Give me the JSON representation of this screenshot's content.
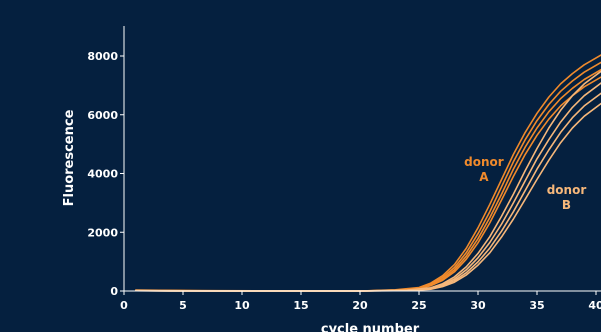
{
  "chart_data": {
    "type": "line",
    "xlabel": "cycle number",
    "ylabel": "Fluorescence",
    "xlim": [
      0,
      40
    ],
    "ylim": [
      0,
      8500
    ],
    "xticks": [
      0,
      5,
      10,
      15,
      20,
      25,
      30,
      35,
      40
    ],
    "yticks": [
      0,
      2000,
      4000,
      6000,
      8000
    ],
    "grid": false,
    "annotations": [
      {
        "line1": "donor",
        "line2": "A",
        "x": 30.5,
        "y": 4250,
        "color": "#f08a2c"
      },
      {
        "line1": "donor",
        "line2": "B",
        "x": 37.5,
        "y": 3300,
        "color": "#f6b77a"
      }
    ],
    "series": [
      {
        "group": "A",
        "color": "#f08a2c",
        "x": [
          1,
          4,
          8,
          12,
          16,
          20,
          23,
          25,
          26,
          27,
          28,
          29,
          30,
          31,
          32,
          33,
          34,
          35,
          36,
          37,
          38,
          39,
          40.5
        ],
        "y": [
          30,
          20,
          10,
          5,
          0,
          0,
          40,
          120,
          270,
          520,
          900,
          1450,
          2150,
          2950,
          3800,
          4650,
          5400,
          6050,
          6600,
          7050,
          7400,
          7700,
          8050
        ]
      },
      {
        "group": "A",
        "color": "#f08a2c",
        "x": [
          1,
          4,
          8,
          12,
          16,
          20,
          23,
          25,
          26,
          27,
          28,
          29,
          30,
          31,
          32,
          33,
          34,
          35,
          36,
          37,
          38,
          39,
          40.5
        ],
        "y": [
          25,
          15,
          5,
          0,
          0,
          0,
          30,
          100,
          230,
          460,
          800,
          1300,
          1950,
          2700,
          3550,
          4400,
          5150,
          5800,
          6350,
          6800,
          7150,
          7450,
          7800
        ]
      },
      {
        "group": "A",
        "color": "#f08a2c",
        "x": [
          1,
          4,
          8,
          12,
          16,
          20,
          23,
          25,
          26,
          27,
          28,
          29,
          30,
          31,
          32,
          33,
          34,
          35,
          36,
          37,
          38,
          39,
          40.5
        ],
        "y": [
          20,
          10,
          5,
          0,
          0,
          0,
          25,
          90,
          200,
          400,
          720,
          1180,
          1780,
          2500,
          3300,
          4150,
          4900,
          5550,
          6100,
          6550,
          6900,
          7200,
          7550
        ]
      },
      {
        "group": "A",
        "color": "#f08a2c",
        "x": [
          1,
          4,
          8,
          12,
          16,
          20,
          23,
          25,
          26,
          27,
          28,
          29,
          30,
          31,
          32,
          33,
          34,
          35,
          36,
          37,
          38,
          39,
          40.5
        ],
        "y": [
          15,
          10,
          0,
          0,
          0,
          0,
          20,
          80,
          180,
          360,
          650,
          1080,
          1640,
          2320,
          3100,
          3900,
          4650,
          5300,
          5850,
          6300,
          6650,
          6950,
          7300
        ]
      },
      {
        "group": "B",
        "color": "#f6b77a",
        "x": [
          1,
          4,
          8,
          12,
          16,
          20,
          24,
          26,
          27,
          28,
          29,
          30,
          31,
          32,
          33,
          34,
          35,
          36,
          37,
          38,
          39,
          40.5
        ],
        "y": [
          20,
          10,
          0,
          0,
          0,
          0,
          30,
          110,
          250,
          480,
          820,
          1280,
          1850,
          2550,
          3300,
          4100,
          4850,
          5550,
          6150,
          6650,
          7050,
          7500
        ]
      },
      {
        "group": "B",
        "color": "#f6b77a",
        "x": [
          1,
          4,
          8,
          12,
          16,
          20,
          24,
          26,
          27,
          28,
          29,
          30,
          31,
          32,
          33,
          34,
          35,
          36,
          37,
          38,
          39,
          40.5
        ],
        "y": [
          15,
          5,
          0,
          0,
          0,
          0,
          25,
          90,
          210,
          410,
          720,
          1130,
          1650,
          2280,
          3000,
          3750,
          4500,
          5150,
          5750,
          6250,
          6650,
          7100
        ]
      },
      {
        "group": "B",
        "color": "#f6b77a",
        "x": [
          1,
          4,
          8,
          12,
          16,
          20,
          24,
          26,
          27,
          28,
          29,
          30,
          31,
          32,
          33,
          34,
          35,
          36,
          37,
          38,
          39,
          40.5
        ],
        "y": [
          10,
          5,
          0,
          0,
          0,
          0,
          20,
          75,
          180,
          350,
          620,
          990,
          1460,
          2040,
          2700,
          3420,
          4150,
          4800,
          5400,
          5900,
          6300,
          6750
        ]
      },
      {
        "group": "B",
        "color": "#f6b77a",
        "x": [
          1,
          4,
          8,
          12,
          16,
          20,
          24,
          26,
          27,
          28,
          29,
          30,
          31,
          32,
          33,
          34,
          35,
          36,
          37,
          38,
          39,
          40.5
        ],
        "y": [
          10,
          0,
          0,
          0,
          0,
          0,
          15,
          60,
          150,
          300,
          540,
          880,
          1300,
          1840,
          2450,
          3120,
          3800,
          4450,
          5050,
          5550,
          5950,
          6400
        ]
      }
    ]
  }
}
